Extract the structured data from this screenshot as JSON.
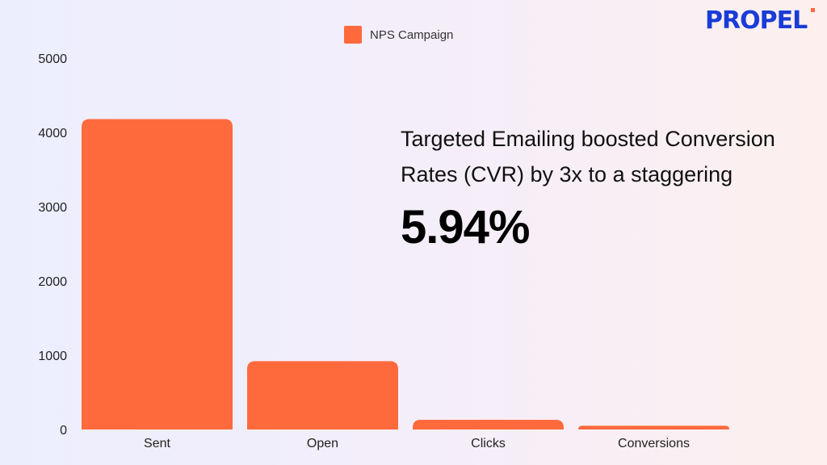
{
  "brand": {
    "logo_text": "PROPEL",
    "logo_color": "#1a3cd6",
    "accent_color": "#ff6a3d"
  },
  "headline": {
    "text": "Targeted Emailing boosted Conversion Rates (CVR) by 3x to a staggering",
    "stat": "5.94%"
  },
  "chart_data": {
    "type": "bar",
    "categories": [
      "Sent",
      "Open",
      "Clicks",
      "Conversions"
    ],
    "series": [
      {
        "name": "NPS Campaign",
        "values": [
          4180,
          920,
          130,
          50
        ],
        "color": "#ff6a3d"
      }
    ],
    "title": "",
    "xlabel": "",
    "ylabel": "",
    "ylim": [
      0,
      5000
    ],
    "yticks": [
      0,
      1000,
      2000,
      3000,
      4000,
      5000
    ],
    "grid": false,
    "legend_position": "top-center"
  }
}
